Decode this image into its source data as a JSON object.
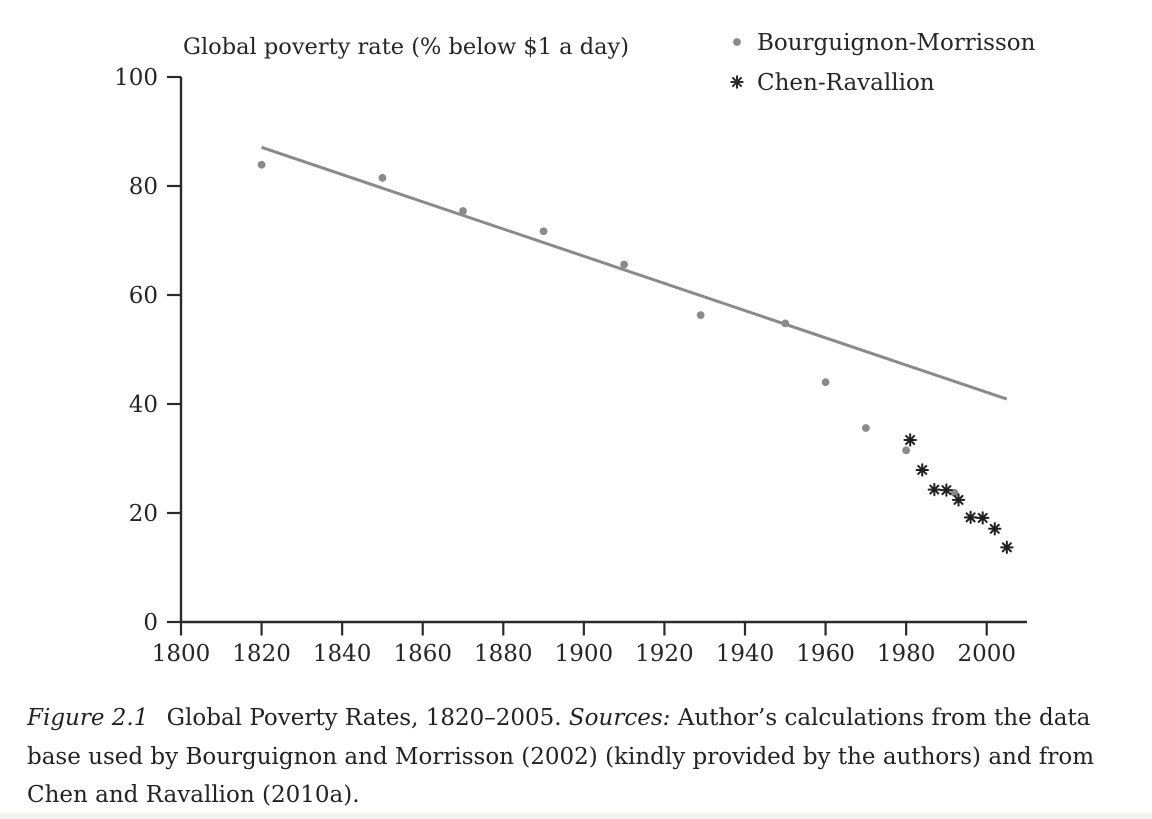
{
  "page": {
    "background": "#ffffff"
  },
  "chart_data": {
    "type": "scatter",
    "title": "Global poverty rate (% below $1 a day)",
    "xlabel": "",
    "ylabel": "",
    "xlim": [
      1800,
      2010
    ],
    "ylim": [
      0,
      100
    ],
    "x_ticks": [
      1800,
      1820,
      1840,
      1860,
      1880,
      1900,
      1920,
      1940,
      1960,
      1980,
      2000
    ],
    "y_ticks": [
      0,
      20,
      40,
      60,
      80,
      100
    ],
    "grid": false,
    "legend_position": "top-right",
    "series": [
      {
        "name": "Bourguignon-Morrisson",
        "marker": "dot",
        "color": "#8a8a8a",
        "in_legend": true,
        "points": [
          [
            1820,
            83.9
          ],
          [
            1850,
            81.5
          ],
          [
            1870,
            75.4
          ],
          [
            1890,
            71.7
          ],
          [
            1910,
            65.6
          ],
          [
            1929,
            56.3
          ],
          [
            1950,
            54.8
          ],
          [
            1960,
            44.0
          ],
          [
            1970,
            35.6
          ],
          [
            1980,
            31.5
          ],
          [
            1992,
            23.7
          ]
        ]
      },
      {
        "name": "Chen-Ravallion",
        "marker": "asterisk",
        "color": "#1f1f1f",
        "in_legend": true,
        "points": [
          [
            1981,
            33.4
          ],
          [
            1984,
            27.9
          ],
          [
            1987,
            24.3
          ],
          [
            1990,
            24.2
          ],
          [
            1993,
            22.4
          ],
          [
            1996,
            19.2
          ],
          [
            1999,
            19.1
          ],
          [
            2002,
            17.1
          ],
          [
            2005,
            13.7
          ]
        ]
      },
      {
        "name": "trend-line",
        "marker": "line",
        "color": "#8a8a8a",
        "in_legend": false,
        "points": [
          [
            1820,
            87.1
          ],
          [
            2005,
            40.9
          ]
        ]
      }
    ]
  },
  "caption": {
    "figure_label": "Figure 2.1",
    "title_text": "Global Poverty Rates, 1820–2005.",
    "sources_label": "Sources:",
    "sources_text": "Author’s calculations from the data base used by Bourguignon and Morrisson (2002) (kindly provided by the authors) and from Chen and Ravallion (2010a)."
  },
  "colors": {
    "axis": "#2b2b2b",
    "text": "#262626",
    "bm_gray": "#8a8a8a",
    "cr_black": "#1f1f1f"
  }
}
